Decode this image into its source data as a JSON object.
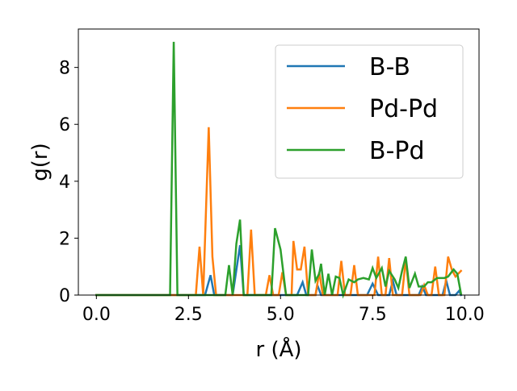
{
  "chart_data": {
    "type": "line",
    "xlabel": "r (Å)",
    "ylabel": "g(r)",
    "xlim": [
      -0.49,
      10.39
    ],
    "ylim": [
      0,
      9.35
    ],
    "xticks": [
      0.0,
      2.5,
      5.0,
      7.5,
      10.0
    ],
    "xtick_labels": [
      "0.0",
      "2.5",
      "5.0",
      "7.5",
      "10.0"
    ],
    "yticks": [
      0,
      2,
      4,
      6,
      8
    ],
    "ytick_labels": [
      "0",
      "2",
      "4",
      "6",
      "8"
    ],
    "grid": false,
    "legend_position": "top-right",
    "series": [
      {
        "name": "B-B",
        "color": "#1f77b4",
        "points": [
          [
            0.0,
            0.0
          ],
          [
            2.95,
            0.0
          ],
          [
            3.1,
            0.7
          ],
          [
            3.2,
            0.0
          ],
          [
            3.7,
            0.0
          ],
          [
            3.9,
            1.75
          ],
          [
            4.0,
            0.0
          ],
          [
            5.45,
            0.0
          ],
          [
            5.6,
            0.45
          ],
          [
            5.7,
            0.0
          ],
          [
            5.95,
            0.0
          ],
          [
            6.0,
            0.35
          ],
          [
            6.1,
            0.0
          ],
          [
            7.35,
            0.0
          ],
          [
            7.5,
            0.4
          ],
          [
            7.65,
            0.0
          ],
          [
            7.95,
            0.0
          ],
          [
            8.05,
            0.5
          ],
          [
            8.15,
            0.0
          ],
          [
            8.75,
            0.0
          ],
          [
            8.85,
            0.3
          ],
          [
            8.95,
            0.0
          ],
          [
            9.4,
            0.0
          ],
          [
            9.5,
            0.5
          ],
          [
            9.6,
            0.0
          ],
          [
            9.75,
            0.0
          ],
          [
            9.85,
            0.15
          ],
          [
            9.9,
            0.0
          ]
        ]
      },
      {
        "name": "Pd-Pd",
        "color": "#ff7f0e",
        "points": [
          [
            0.0,
            0.0
          ],
          [
            2.7,
            0.0
          ],
          [
            2.8,
            1.7
          ],
          [
            2.9,
            0.0
          ],
          [
            3.05,
            5.9
          ],
          [
            3.15,
            1.35
          ],
          [
            3.25,
            0.0
          ],
          [
            4.1,
            0.0
          ],
          [
            4.2,
            2.3
          ],
          [
            4.3,
            0.0
          ],
          [
            4.6,
            0.0
          ],
          [
            4.7,
            0.7
          ],
          [
            4.8,
            0.0
          ],
          [
            4.95,
            0.0
          ],
          [
            5.05,
            0.8
          ],
          [
            5.15,
            0.0
          ],
          [
            5.3,
            0.0
          ],
          [
            5.35,
            1.9
          ],
          [
            5.45,
            0.9
          ],
          [
            5.55,
            0.9
          ],
          [
            5.65,
            1.7
          ],
          [
            5.75,
            0.0
          ],
          [
            5.95,
            0.0
          ],
          [
            6.05,
            0.8
          ],
          [
            6.15,
            0.0
          ],
          [
            6.55,
            0.0
          ],
          [
            6.65,
            1.2
          ],
          [
            6.75,
            0.0
          ],
          [
            6.9,
            0.0
          ],
          [
            7.0,
            1.05
          ],
          [
            7.1,
            0.0
          ],
          [
            7.55,
            0.0
          ],
          [
            7.65,
            1.35
          ],
          [
            7.75,
            0.0
          ],
          [
            7.85,
            0.0
          ],
          [
            7.95,
            1.3
          ],
          [
            8.05,
            0.0
          ],
          [
            8.3,
            0.0
          ],
          [
            8.4,
            1.25
          ],
          [
            8.5,
            0.0
          ],
          [
            8.8,
            0.0
          ],
          [
            8.9,
            0.35
          ],
          [
            9.0,
            0.0
          ],
          [
            9.1,
            0.0
          ],
          [
            9.2,
            1.0
          ],
          [
            9.3,
            0.0
          ],
          [
            9.45,
            0.0
          ],
          [
            9.55,
            1.35
          ],
          [
            9.65,
            0.9
          ],
          [
            9.75,
            0.65
          ],
          [
            9.9,
            0.85
          ]
        ]
      },
      {
        "name": "B-Pd",
        "color": "#2ca02c",
        "points": [
          [
            0.0,
            0.0
          ],
          [
            2.0,
            0.0
          ],
          [
            2.1,
            8.9
          ],
          [
            2.2,
            0.0
          ],
          [
            3.5,
            0.0
          ],
          [
            3.6,
            1.05
          ],
          [
            3.7,
            0.0
          ],
          [
            3.8,
            1.8
          ],
          [
            3.9,
            2.65
          ],
          [
            4.0,
            0.0
          ],
          [
            4.75,
            0.0
          ],
          [
            4.85,
            2.35
          ],
          [
            5.0,
            1.6
          ],
          [
            5.15,
            0.0
          ],
          [
            5.75,
            0.0
          ],
          [
            5.85,
            1.6
          ],
          [
            5.95,
            0.5
          ],
          [
            6.05,
            0.75
          ],
          [
            6.1,
            1.1
          ],
          [
            6.2,
            0.0
          ],
          [
            6.3,
            0.75
          ],
          [
            6.4,
            0.0
          ],
          [
            6.5,
            0.65
          ],
          [
            6.6,
            0.6
          ],
          [
            6.7,
            0.0
          ],
          [
            6.85,
            0.55
          ],
          [
            7.0,
            0.45
          ],
          [
            7.1,
            0.55
          ],
          [
            7.25,
            0.6
          ],
          [
            7.4,
            0.55
          ],
          [
            7.5,
            0.95
          ],
          [
            7.6,
            0.6
          ],
          [
            7.75,
            0.95
          ],
          [
            7.85,
            0.3
          ],
          [
            7.95,
            0.85
          ],
          [
            8.1,
            0.55
          ],
          [
            8.2,
            0.25
          ],
          [
            8.3,
            0.85
          ],
          [
            8.4,
            1.35
          ],
          [
            8.5,
            0.25
          ],
          [
            8.65,
            0.75
          ],
          [
            8.75,
            0.3
          ],
          [
            8.9,
            0.3
          ],
          [
            9.0,
            0.45
          ],
          [
            9.1,
            0.45
          ],
          [
            9.25,
            0.6
          ],
          [
            9.45,
            0.6
          ],
          [
            9.55,
            0.65
          ],
          [
            9.7,
            0.9
          ],
          [
            9.8,
            0.75
          ],
          [
            9.9,
            0.05
          ]
        ]
      }
    ]
  }
}
